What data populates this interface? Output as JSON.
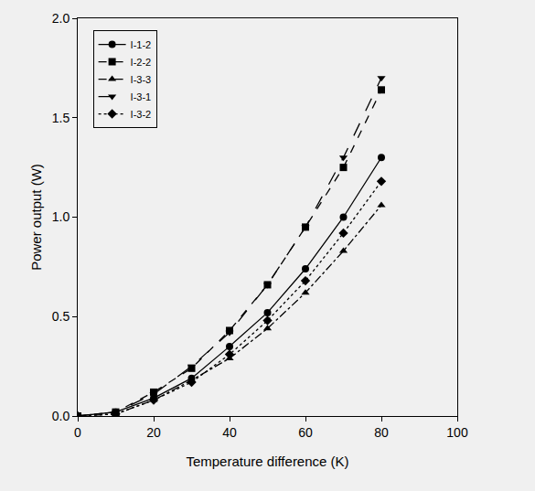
{
  "chart_data": {
    "type": "line",
    "x_label": "Temperature difference (K)",
    "y_label": "Power output (W)",
    "x": [
      0,
      10,
      20,
      30,
      40,
      50,
      60,
      70,
      80
    ],
    "series": [
      {
        "name": "I-1-2",
        "color": "#000000",
        "marker": "circle",
        "line_style": "solid",
        "values": [
          0,
          0.02,
          0.09,
          0.19,
          0.35,
          0.52,
          0.74,
          1.0,
          1.3
        ]
      },
      {
        "name": "I-2-2",
        "color": "#000000",
        "marker": "square",
        "line_style": "dash",
        "values": [
          0,
          0.02,
          0.12,
          0.24,
          0.43,
          0.66,
          0.95,
          1.25,
          1.64
        ]
      },
      {
        "name": "I-3-3",
        "color": "#000000",
        "marker": "triangle-up",
        "line_style": "dashdot",
        "values": [
          0,
          0.01,
          0.08,
          0.18,
          0.29,
          0.44,
          0.62,
          0.83,
          1.06
        ]
      },
      {
        "name": "I-3-1",
        "color": "#000000",
        "marker": "triangle-down",
        "line_style": "longdash",
        "values": [
          0,
          0.02,
          0.11,
          0.25,
          0.42,
          0.66,
          0.95,
          1.3,
          1.7
        ]
      },
      {
        "name": "I-3-2",
        "color": "#000000",
        "marker": "diamond",
        "line_style": "dot",
        "values": [
          0,
          0.01,
          0.08,
          0.17,
          0.31,
          0.48,
          0.68,
          0.92,
          1.18
        ]
      }
    ],
    "xlim": [
      0,
      100
    ],
    "xticks": [
      0,
      20,
      40,
      60,
      80,
      100
    ],
    "ylim": [
      0,
      2.0
    ],
    "yticks": [
      {
        "value": 0,
        "label": "0.0"
      },
      {
        "value": 0.5,
        "label": "0.5"
      },
      {
        "value": 1.0,
        "label": "1.0"
      },
      {
        "value": 1.5,
        "label": "1.5"
      },
      {
        "value": 2.0,
        "label": "2.0"
      }
    ],
    "grid": false,
    "legend": "upper left"
  }
}
